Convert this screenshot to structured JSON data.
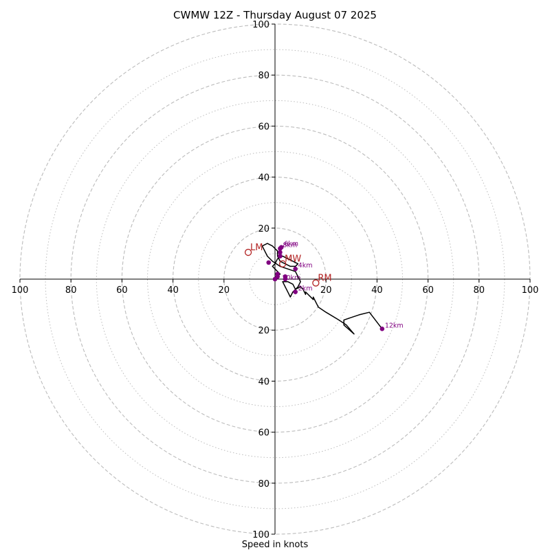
{
  "chart_data": {
    "type": "hodograph",
    "title": "CWMW 12Z - Thursday August 07 2025",
    "xlabel": "Speed in knots",
    "ylabel": "",
    "xlim": [
      -100,
      100
    ],
    "ylim": [
      -100,
      100
    ],
    "ticks": [
      -100,
      -80,
      -60,
      -40,
      -20,
      20,
      40,
      60,
      80,
      100
    ],
    "tick_labels": [
      "100",
      "80",
      "60",
      "40",
      "20",
      "20",
      "40",
      "60",
      "80",
      "100"
    ],
    "rings_dashed": [
      20,
      40,
      60,
      80,
      100
    ],
    "rings_dotted": [
      10,
      30,
      50,
      70,
      90
    ],
    "grid": true,
    "colors": {
      "trace": "#000000",
      "height_marker": "#800080",
      "motion_marker": "#b22222",
      "ring": "#bbbbbb",
      "axis": "#000000"
    },
    "trace": [
      [
        0,
        0
      ],
      [
        1,
        1
      ],
      [
        2,
        2
      ],
      [
        1,
        3
      ],
      [
        0,
        4
      ],
      [
        -1,
        5
      ],
      [
        0,
        6
      ],
      [
        1,
        8
      ],
      [
        3,
        9
      ],
      [
        5,
        8
      ],
      [
        7,
        7
      ],
      [
        9,
        6
      ],
      [
        8,
        5
      ],
      [
        6,
        5
      ],
      [
        4,
        6
      ],
      [
        2,
        7
      ],
      [
        1,
        9
      ],
      [
        1,
        11
      ],
      [
        0,
        12
      ],
      [
        -1,
        13
      ],
      [
        -3,
        14
      ],
      [
        -5,
        13
      ],
      [
        -3,
        9
      ],
      [
        -1,
        7
      ],
      [
        2,
        5
      ],
      [
        5,
        4
      ],
      [
        8,
        3
      ],
      [
        9,
        1
      ],
      [
        10,
        -1
      ],
      [
        9,
        -3
      ],
      [
        7,
        -5
      ],
      [
        6,
        -7
      ],
      [
        5,
        -5
      ],
      [
        4,
        -3
      ],
      [
        3,
        -1
      ],
      [
        5,
        -1
      ],
      [
        7,
        -2
      ],
      [
        8,
        -4
      ],
      [
        10,
        -3
      ],
      [
        11,
        -4
      ],
      [
        12,
        -6
      ],
      [
        12,
        -5
      ],
      [
        15,
        -8
      ],
      [
        15,
        -7
      ],
      [
        17,
        -11
      ],
      [
        20,
        -13
      ],
      [
        25,
        -16
      ],
      [
        28,
        -18
      ],
      [
        31,
        -21.5
      ],
      [
        27,
        -18
      ],
      [
        27,
        -16
      ],
      [
        33,
        -14
      ],
      [
        37,
        -13
      ],
      [
        42,
        -19.5
      ]
    ],
    "height_markers": [
      {
        "label": "",
        "x": 0,
        "y": 0
      },
      {
        "label": "",
        "x": 1,
        "y": 1
      },
      {
        "label": "2km",
        "x": 8,
        "y": -5
      },
      {
        "label": "",
        "x": 4,
        "y": 0
      },
      {
        "label": "",
        "x": 4,
        "y": 1
      },
      {
        "label": "",
        "x": 1,
        "y": 2
      },
      {
        "label": "",
        "x": -2.5,
        "y": 6.5
      },
      {
        "label": "4km",
        "x": 8,
        "y": 4
      },
      {
        "label": "",
        "x": 2,
        "y": 9
      },
      {
        "label": "",
        "x": 2,
        "y": 10.5
      },
      {
        "label": "8km",
        "x": 2,
        "y": 12
      },
      {
        "label": "6km",
        "x": 2.5,
        "y": 12.5
      },
      {
        "label": "12km",
        "x": 42,
        "y": -19.5
      }
    ],
    "other_labels": [
      {
        "label": "10km",
        "x": 2,
        "y": 0.5
      }
    ],
    "storm_motion": [
      {
        "label": "LM",
        "x": -10.5,
        "y": 10.5
      },
      {
        "label": "RM",
        "x": 16,
        "y": -1.5
      },
      {
        "label": "MW",
        "x": 3,
        "y": 6
      }
    ]
  }
}
